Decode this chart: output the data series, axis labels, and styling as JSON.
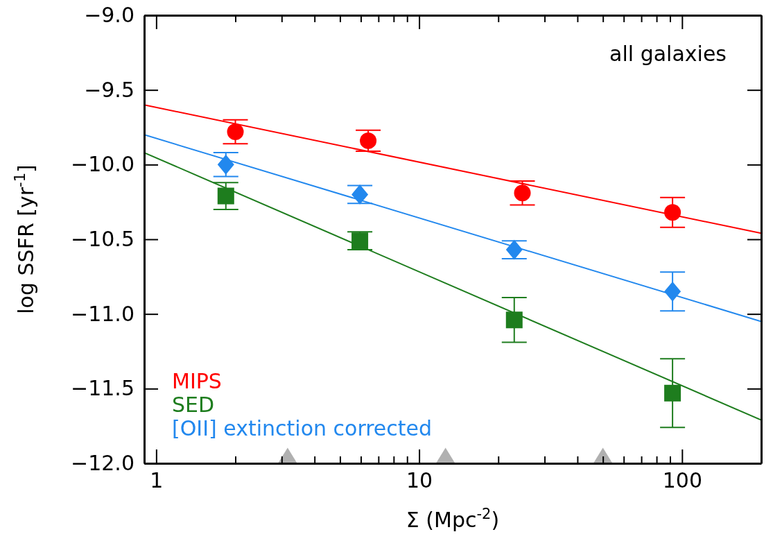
{
  "chart_data": {
    "type": "scatter",
    "xlabel": "Σ (Mpc$^{-2}$)",
    "ylabel": "log SSFR [yr$^{-1}$]",
    "log": "x",
    "xlim": [
      0.9,
      200
    ],
    "ylim": [
      -12.0,
      -9.0
    ],
    "xticks": [
      1,
      {
        "value": 2,
        "label": null
      },
      {
        "value": 3,
        "label": null
      },
      {
        "value": 4,
        "label": null
      },
      {
        "value": 5,
        "label": null
      },
      {
        "value": 6,
        "label": null
      },
      {
        "value": 7,
        "label": null
      },
      {
        "value": 8,
        "label": null
      },
      {
        "value": 9,
        "label": null
      },
      10,
      {
        "value": 20,
        "label": null
      },
      {
        "value": 30,
        "label": null
      },
      {
        "value": 40,
        "label": null
      },
      {
        "value": 50,
        "label": null
      },
      {
        "value": 60,
        "label": null
      },
      {
        "value": 70,
        "label": null
      },
      {
        "value": 80,
        "label": null
      },
      {
        "value": 90,
        "label": null
      },
      100,
      {
        "value": 200,
        "label": null
      }
    ],
    "yticks": [
      {
        "value": -12.0,
        "label": "−12.0"
      },
      {
        "value": -11.5,
        "label": "−11.5"
      },
      {
        "value": -11.0,
        "label": "−11.0"
      },
      {
        "value": -10.5,
        "label": "−10.5"
      },
      {
        "value": -10.0,
        "label": "−10.0"
      },
      {
        "value": -9.5,
        "label": "−9.5"
      },
      {
        "value": -9.0,
        "label": "−9.0"
      }
    ],
    "grid": false,
    "legend": "bottom left",
    "annotations": [
      "all galaxies"
    ],
    "series": [
      {
        "name": "MIPS",
        "color": "#ff0000",
        "marker": "circle",
        "x": [
          2.0,
          6.4,
          24.7,
          92
        ],
        "values": [
          -9.78,
          -9.84,
          -10.19,
          -10.32
        ],
        "errors": [
          0.08,
          0.07,
          0.08,
          0.1
        ]
      },
      {
        "name": "SED",
        "color": "#1e7d1e",
        "marker": "square",
        "x": [
          1.84,
          5.95,
          23.0,
          92
        ],
        "values": [
          -10.21,
          -10.51,
          -11.04,
          -11.53
        ],
        "errors": [
          0.09,
          0.06,
          0.15,
          0.23
        ]
      },
      {
        "name": "[OII] extinction corrected",
        "color": "#2288ee",
        "marker": "diamond",
        "x": [
          1.84,
          5.95,
          23.0,
          92
        ],
        "values": [
          -10.0,
          -10.2,
          -10.57,
          -10.85
        ],
        "errors": [
          0.08,
          0.06,
          0.06,
          0.13
        ]
      },
      {
        "type": "line",
        "color": "#ff0000",
        "x": [
          0.9,
          200
        ],
        "values": [
          -9.6,
          -10.46
        ]
      },
      {
        "type": "line",
        "color": "#1e7d1e",
        "x": [
          0.9,
          200
        ],
        "values": [
          -9.92,
          -11.71
        ]
      },
      {
        "type": "line",
        "color": "#2288ee",
        "x": [
          0.9,
          200
        ],
        "values": [
          -9.8,
          -11.05
        ]
      },
      {
        "color": "#b0b0b0",
        "marker": "triangle",
        "x": [
          3.16,
          12.6,
          50
        ],
        "values": [
          -11.96,
          -11.96,
          -11.96
        ]
      }
    ]
  }
}
